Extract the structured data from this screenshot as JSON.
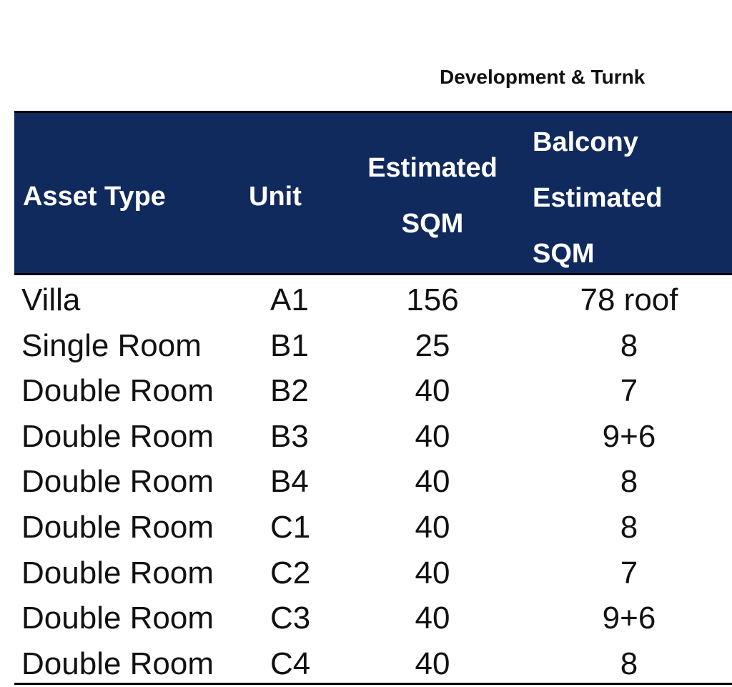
{
  "title": "Development & Turnk",
  "table": {
    "header": [
      "Asset Type",
      "Unit",
      "Estimated\nSQM",
      "Balcony\nEstimated\nSQM"
    ],
    "rows": [
      [
        "Villa",
        "A1",
        "156",
        "78 roof"
      ],
      [
        "Single Room",
        "B1",
        "25",
        "8"
      ],
      [
        "Double Room",
        "B2",
        "40",
        "7"
      ],
      [
        "Double Room",
        "B3",
        "40",
        "9+6"
      ],
      [
        "Double Room",
        "B4",
        "40",
        "8"
      ],
      [
        "Double Room",
        "C1",
        "40",
        "8"
      ],
      [
        "Double Room",
        "C2",
        "40",
        "7"
      ],
      [
        "Double Room",
        "C3",
        "40",
        "9+6"
      ],
      [
        "Double Room",
        "C4",
        "40",
        "8"
      ]
    ]
  }
}
